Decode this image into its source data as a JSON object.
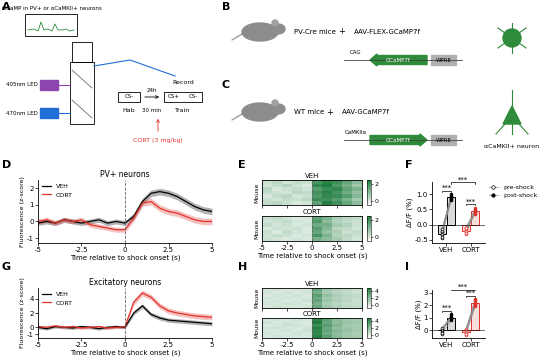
{
  "diagrams": {
    "A": {
      "panel": "A",
      "caption": "GCaMP in PV+ or αCaMKII+ neurons",
      "leds": [
        "405nm LED",
        "470nm LED"
      ],
      "record": "Record",
      "hab_stim": "CS-",
      "hab": "Hab",
      "interval": "24h",
      "delay": "30 min",
      "train_stims": [
        "CS+",
        "CS-"
      ],
      "train": "Train",
      "drug": "CORT (3 mg/kg)"
    },
    "B": {
      "panel": "B",
      "mouse": "PV-Cre mice",
      "plus": "+",
      "virus": "AAV-FLEX-GCaMP7f",
      "promoter": "CAG",
      "gene": "GCaMP7f",
      "element": "WPRE"
    },
    "C": {
      "panel": "C",
      "mouse": "WT mice",
      "plus": "+",
      "virus": "AAV-GCaMP7f",
      "promoter": "CaMKIIα",
      "gene": "GCaMP7f",
      "element": "WPRE",
      "cell": "αCaMKII+ neuron"
    }
  },
  "chart_data": [
    {
      "panel": "D",
      "type": "line",
      "title": "PV+ neurons",
      "xlabel": "Time relative to shock onset (s)",
      "ylabel": "Fluorescence (z-score)",
      "x": [
        -5,
        -4.5,
        -4,
        -3.5,
        -3,
        -2.5,
        -2,
        -1.5,
        -1,
        -0.5,
        0,
        0.5,
        1,
        1.5,
        2,
        2.5,
        3,
        3.5,
        4,
        4.5,
        5
      ],
      "xlim": [
        -5,
        5
      ],
      "xticks": [
        -5,
        -2.5,
        0,
        2.5,
        5
      ],
      "ylim": [
        -1.3,
        2.5
      ],
      "yticks": [
        -1,
        0,
        1,
        2
      ],
      "shock_onset": 0,
      "legend": "upper left",
      "series": [
        {
          "name": "VEH",
          "color": "#000000",
          "values": [
            -0.1,
            0.0,
            -0.1,
            0.1,
            0.0,
            -0.1,
            0.0,
            0.1,
            -0.1,
            0.0,
            -0.1,
            0.3,
            1.2,
            1.7,
            1.8,
            1.7,
            1.5,
            1.2,
            0.9,
            0.7,
            0.6
          ],
          "sem": [
            0.15,
            0.15,
            0.15,
            0.15,
            0.15,
            0.15,
            0.15,
            0.15,
            0.15,
            0.15,
            0.15,
            0.2,
            0.2,
            0.2,
            0.2,
            0.2,
            0.2,
            0.2,
            0.2,
            0.2,
            0.2
          ]
        },
        {
          "name": "CORT",
          "color": "#e0322b",
          "values": [
            0.0,
            0.1,
            -0.1,
            0.1,
            0.0,
            0.1,
            -0.2,
            -0.3,
            -0.4,
            -0.5,
            -0.5,
            0.2,
            1.1,
            1.2,
            0.8,
            0.6,
            0.5,
            0.3,
            0.1,
            0.0,
            0.0
          ],
          "sem": [
            0.15,
            0.15,
            0.15,
            0.15,
            0.15,
            0.15,
            0.15,
            0.15,
            0.15,
            0.15,
            0.15,
            0.2,
            0.2,
            0.2,
            0.2,
            0.2,
            0.2,
            0.2,
            0.2,
            0.2,
            0.2
          ]
        }
      ]
    },
    {
      "panel": "E",
      "type": "heatmap",
      "xlabel": "Time relative to shock onset (s)",
      "ylabel": "Mouse",
      "bins": [
        -5,
        -4,
        -3,
        -2,
        -1,
        0,
        1,
        2,
        3,
        4,
        5
      ],
      "xlim": [
        -5,
        5
      ],
      "xticks": [
        -5,
        -2.5,
        0,
        2.5,
        5
      ],
      "shock_onset": 0,
      "tick_labels": "x",
      "color": "#1b7a3a",
      "colorbar": {
        "range": [
          -0.5,
          2.5
        ],
        "ticks": [
          0,
          2
        ]
      },
      "maps": [
        {
          "title": "VEH",
          "cells": [
            [
              0.2,
              0.4,
              0.1,
              0.3,
              0.2,
              1.9,
              2.3,
              2.0,
              1.5,
              1.0
            ],
            [
              0.1,
              0.3,
              0.5,
              0.2,
              0.0,
              2.2,
              2.4,
              1.8,
              1.3,
              0.8
            ],
            [
              0.4,
              0.0,
              0.2,
              0.3,
              0.1,
              1.7,
              2.1,
              2.2,
              1.6,
              1.2
            ],
            [
              0.3,
              0.2,
              0.1,
              0.4,
              0.3,
              2.0,
              2.3,
              1.9,
              1.4,
              0.9
            ],
            [
              0.0,
              0.3,
              0.4,
              0.1,
              0.2,
              1.8,
              2.2,
              2.1,
              1.7,
              1.1
            ],
            [
              0.2,
              0.1,
              0.3,
              0.2,
              0.4,
              2.1,
              2.0,
              1.7,
              1.2,
              0.7
            ],
            [
              0.3,
              0.4,
              0.2,
              0.0,
              0.1,
              1.6,
              2.4,
              2.0,
              1.5,
              1.0
            ]
          ]
        },
        {
          "title": "CORT",
          "cells": [
            [
              0.2,
              0.3,
              0.1,
              0.0,
              0.0,
              1.6,
              1.2,
              0.6,
              0.4,
              0.3
            ],
            [
              0.1,
              0.2,
              0.3,
              0.1,
              0.0,
              1.8,
              1.0,
              0.5,
              0.3,
              0.2
            ],
            [
              0.3,
              0.1,
              0.2,
              0.0,
              0.1,
              1.4,
              1.3,
              0.7,
              0.5,
              0.2
            ],
            [
              0.0,
              0.2,
              0.1,
              0.2,
              0.0,
              1.7,
              1.1,
              0.4,
              0.3,
              0.1
            ],
            [
              0.2,
              0.0,
              0.3,
              0.1,
              0.0,
              1.5,
              0.9,
              0.6,
              0.2,
              0.3
            ],
            [
              0.1,
              0.3,
              0.2,
              0.0,
              0.1,
              1.9,
              1.2,
              0.5,
              0.4,
              0.2
            ],
            [
              0.2,
              0.1,
              0.0,
              0.1,
              0.0,
              1.3,
              1.0,
              0.7,
              0.3,
              0.1
            ]
          ]
        }
      ]
    },
    {
      "panel": "F",
      "type": "bar",
      "ylabel": "ΔF/F (%)",
      "categories": [
        "VEH",
        "CORT"
      ],
      "colors": [
        "#000000",
        "#e0322b"
      ],
      "ylim": [
        -0.6,
        1.4
      ],
      "yticks": [
        -0.5,
        0.0,
        0.5,
        1.0
      ],
      "legend": "upper left",
      "series": [
        {
          "name": "pre-shock",
          "marker": "circle_open",
          "values": [
            -0.3,
            -0.2
          ],
          "points": [
            [
              -0.45,
              -0.35,
              -0.3,
              -0.25,
              -0.2,
              -0.4,
              -0.15
            ],
            [
              -0.3,
              -0.25,
              -0.2,
              -0.15,
              -0.1,
              -0.28,
              -0.12
            ]
          ]
        },
        {
          "name": "post-shock",
          "marker": "circle_filled",
          "values": [
            0.9,
            0.45
          ],
          "points": [
            [
              0.85,
              0.95,
              0.9,
              0.8,
              1.0,
              0.92,
              0.88
            ],
            [
              0.4,
              0.5,
              0.45,
              0.35,
              0.55,
              0.48,
              0.42
            ]
          ]
        }
      ],
      "annotations": [
        {
          "text": "***",
          "bars": [
            0,
            1
          ]
        },
        {
          "text": "***",
          "bars": [
            2,
            3
          ]
        },
        {
          "text": "***",
          "bars": [
            1,
            3
          ]
        }
      ]
    },
    {
      "panel": "G",
      "type": "line",
      "title": "Excitatory neurons",
      "xlabel": "Time relative to shock onset (s)",
      "ylabel": "Fluorescence (z-score)",
      "x": [
        -5,
        -4.5,
        -4,
        -3.5,
        -3,
        -2.5,
        -2,
        -1.5,
        -1,
        -0.5,
        0,
        0.5,
        1,
        1.5,
        2,
        2.5,
        3,
        3.5,
        4,
        4.5,
        5
      ],
      "xlim": [
        -5,
        5
      ],
      "xticks": [
        -5,
        -2.5,
        0,
        2.5,
        5
      ],
      "ylim": [
        -1.5,
        5.5
      ],
      "yticks": [
        -1,
        0,
        2,
        4
      ],
      "shock_onset": 0,
      "legend": "upper left",
      "series": [
        {
          "name": "VEH",
          "color": "#000000",
          "values": [
            0.0,
            -0.2,
            0.1,
            0.0,
            -0.1,
            0.1,
            0.0,
            -0.2,
            0.0,
            0.1,
            0.0,
            2.0,
            3.0,
            1.8,
            1.3,
            1.0,
            0.9,
            0.8,
            0.7,
            0.6,
            0.5
          ],
          "sem": [
            0.2,
            0.2,
            0.2,
            0.2,
            0.2,
            0.2,
            0.2,
            0.2,
            0.2,
            0.2,
            0.2,
            0.3,
            0.3,
            0.3,
            0.3,
            0.3,
            0.3,
            0.3,
            0.3,
            0.3,
            0.3
          ]
        },
        {
          "name": "CORT",
          "color": "#e0322b",
          "values": [
            0.1,
            0.0,
            0.2,
            0.0,
            0.1,
            -0.1,
            0.0,
            0.1,
            -0.1,
            0.0,
            0.1,
            3.5,
            4.8,
            4.2,
            3.0,
            2.3,
            2.0,
            1.8,
            1.6,
            1.5,
            1.4
          ],
          "sem": [
            0.2,
            0.2,
            0.2,
            0.2,
            0.2,
            0.2,
            0.2,
            0.2,
            0.2,
            0.2,
            0.2,
            0.4,
            0.4,
            0.4,
            0.4,
            0.4,
            0.4,
            0.4,
            0.4,
            0.4,
            0.4
          ]
        }
      ]
    },
    {
      "panel": "H",
      "type": "heatmap",
      "xlabel": "Time relative to shock onset (s)",
      "ylabel": "Mouse",
      "bins": [
        -5,
        -4,
        -3,
        -2,
        -1,
        0,
        1,
        2,
        3,
        4,
        5
      ],
      "xlim": [
        -5,
        5
      ],
      "xticks": [
        -5,
        -2.5,
        0,
        2.5,
        5
      ],
      "shock_onset": 0,
      "tick_labels": "x",
      "color": "#1b7a3a",
      "colorbar": {
        "range": [
          -1,
          5
        ],
        "ticks": [
          0,
          2,
          4
        ]
      },
      "maps": [
        {
          "title": "VEH",
          "cells": [
            [
              0.1,
              0.3,
              0.0,
              0.2,
              0.1,
              3.0,
              1.5,
              1.0,
              0.8,
              0.5
            ],
            [
              0.2,
              0.0,
              0.3,
              0.1,
              0.2,
              2.6,
              1.3,
              0.9,
              0.6,
              0.4
            ],
            [
              0.0,
              0.2,
              0.1,
              0.3,
              0.0,
              3.3,
              1.8,
              1.2,
              0.9,
              0.6
            ],
            [
              0.3,
              0.1,
              0.2,
              0.0,
              0.1,
              2.8,
              1.4,
              1.0,
              0.7,
              0.5
            ],
            [
              0.1,
              0.2,
              0.0,
              0.1,
              0.3,
              3.1,
              1.6,
              1.1,
              0.8,
              0.4
            ],
            [
              0.2,
              0.1,
              0.3,
              0.2,
              0.0,
              2.5,
              1.2,
              0.9,
              0.6,
              0.5
            ],
            [
              0.0,
              0.3,
              0.1,
              0.0,
              0.2,
              2.9,
              1.5,
              1.0,
              0.7,
              0.6
            ]
          ]
        },
        {
          "title": "CORT",
          "cells": [
            [
              0.1,
              0.2,
              0.0,
              0.3,
              0.1,
              4.6,
              3.2,
              2.1,
              1.6,
              1.4
            ],
            [
              0.3,
              0.0,
              0.2,
              0.1,
              0.0,
              4.9,
              3.0,
              2.0,
              1.7,
              1.5
            ],
            [
              0.0,
              0.1,
              0.3,
              0.2,
              0.1,
              4.2,
              3.4,
              2.3,
              1.5,
              1.3
            ],
            [
              0.2,
              0.3,
              0.1,
              0.0,
              0.2,
              4.8,
              2.9,
              1.9,
              1.6,
              1.4
            ],
            [
              0.1,
              0.0,
              0.2,
              0.1,
              0.3,
              4.5,
              3.1,
              2.2,
              1.8,
              1.5
            ],
            [
              0.2,
              0.1,
              0.0,
              0.3,
              0.1,
              4.4,
              2.8,
              2.0,
              1.5,
              1.2
            ],
            [
              0.0,
              0.2,
              0.1,
              0.1,
              0.0,
              4.7,
              3.3,
              2.1,
              1.6,
              1.4
            ]
          ]
        }
      ]
    },
    {
      "panel": "I",
      "type": "bar",
      "ylabel": "ΔF/F (%)",
      "categories": [
        "VEH",
        "CORT"
      ],
      "colors": [
        "#000000",
        "#e0322b"
      ],
      "ylim": [
        -0.6,
        3.2
      ],
      "yticks": [
        0,
        1,
        2,
        3
      ],
      "series": [
        {
          "name": "pre-shock",
          "marker": "circle_open",
          "values": [
            0.0,
            -0.1
          ],
          "points": [
            [
              -0.3,
              -0.1,
              0.0,
              0.1,
              0.2,
              -0.2,
              0.05
            ],
            [
              -0.4,
              -0.2,
              -0.1,
              0.0,
              0.1,
              -0.3,
              0.05
            ]
          ]
        },
        {
          "name": "post-shock",
          "marker": "circle_filled",
          "values": [
            1.0,
            2.2
          ],
          "points": [
            [
              0.8,
              1.0,
              1.2,
              0.9,
              1.1,
              1.3,
              0.95
            ],
            [
              1.9,
              2.1,
              2.3,
              2.4,
              2.0,
              2.2,
              2.5
            ]
          ]
        }
      ],
      "annotations": [
        {
          "text": "***",
          "bars": [
            0,
            1
          ]
        },
        {
          "text": "***",
          "bars": [
            2,
            3
          ]
        },
        {
          "text": "***",
          "bars": [
            1,
            3
          ]
        }
      ]
    }
  ]
}
